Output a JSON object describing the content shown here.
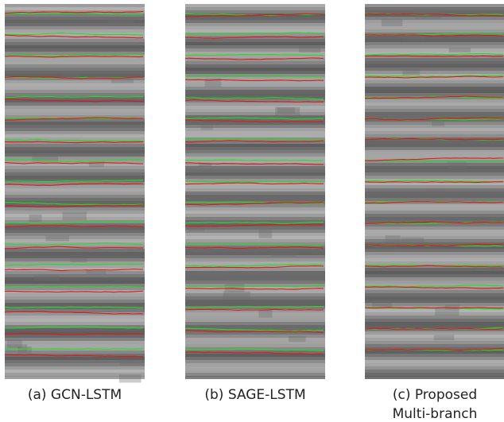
{
  "figure": {
    "panels": [
      {
        "caption": [
          "(a) GCN-LSTM"
        ]
      },
      {
        "caption": [
          "(b) SAGE-LSTM"
        ]
      },
      {
        "caption": [
          "(c) Proposed",
          "Multi-branch"
        ]
      }
    ]
  }
}
